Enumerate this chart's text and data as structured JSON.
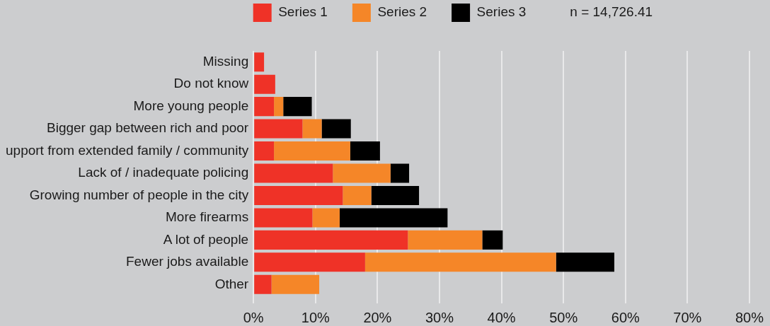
{
  "chart_data": {
    "type": "bar",
    "orientation": "horizontal",
    "stacked": true,
    "categories": [
      "Missing",
      "Do not know",
      "More young people",
      "Bigger gap between rich and poor",
      "upport from extended family / community",
      "Lack of / inadequate policing",
      "Growing number of people in the city",
      "More firearms",
      "A lot of people",
      "Fewer jobs available",
      "Other"
    ],
    "series": [
      {
        "name": "Series 1",
        "color": "#ef3227",
        "values": [
          1.7,
          3.5,
          3.3,
          7.9,
          3.3,
          12.8,
          14.4,
          9.5,
          24.9,
          18.0,
          2.9
        ]
      },
      {
        "name": "Series 2",
        "color": "#f58628",
        "values": [
          null,
          null,
          1.5,
          3.1,
          12.3,
          9.3,
          4.6,
          4.4,
          12.0,
          30.8,
          7.7
        ]
      },
      {
        "name": "Series 3",
        "color": "#000000",
        "values": [
          null,
          null,
          4.6,
          4.7,
          4.8,
          3.0,
          7.7,
          17.4,
          3.3,
          9.4,
          null
        ]
      }
    ],
    "xlim": [
      0,
      80
    ],
    "xticks": [
      {
        "value": 0,
        "label": "0%"
      },
      {
        "value": 10,
        "label": "10%"
      },
      {
        "value": 20,
        "label": "20%"
      },
      {
        "value": 30,
        "label": "30%"
      },
      {
        "value": 40,
        "label": "40%"
      },
      {
        "value": 50,
        "label": "50%"
      },
      {
        "value": 60,
        "label": "60%"
      },
      {
        "value": 70,
        "label": "70%"
      },
      {
        "value": 80,
        "label": "80%"
      }
    ],
    "grid": "x",
    "legend": "top",
    "annotations": [
      "n = 14,726.41"
    ]
  }
}
